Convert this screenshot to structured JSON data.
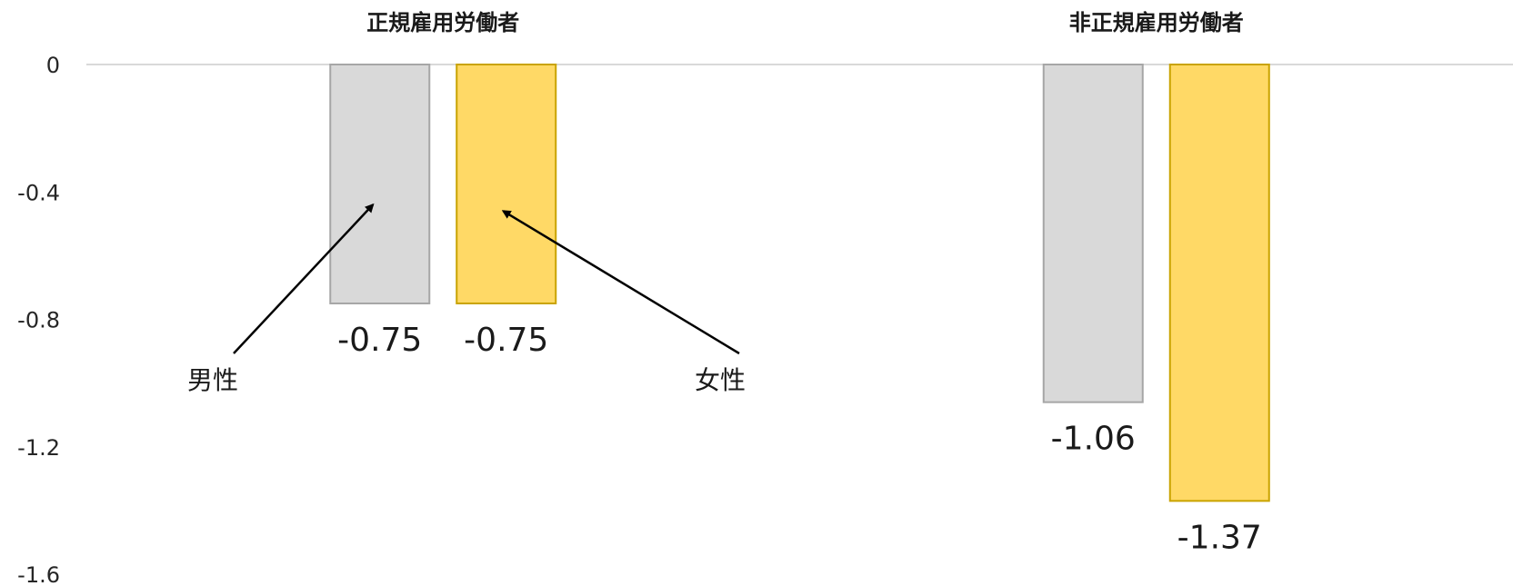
{
  "chart_data": {
    "type": "bar",
    "categories": [
      "正規雇用労働者",
      "非正規雇用労働者"
    ],
    "series": [
      {
        "name": "男性",
        "values": [
          -0.75,
          -1.06
        ],
        "color": "#d9d9d9",
        "stroke": "#a6a6a6"
      },
      {
        "name": "女性",
        "values": [
          -0.75,
          -1.37
        ],
        "color": "#ffd966",
        "stroke": "#c9a300"
      }
    ],
    "data_labels": [
      [
        "-0.75",
        "-1.06"
      ],
      [
        "-0.75",
        "-1.37"
      ]
    ],
    "ylim": [
      -1.6,
      0
    ],
    "yticks": [
      0,
      -0.4,
      -0.8,
      -1.2,
      -1.6
    ],
    "ytick_labels": [
      "0",
      "-0.4",
      "-0.8",
      "-1.2",
      "-1.6"
    ],
    "grid": false,
    "legend": "arrow annotations",
    "annotations": [
      {
        "text": "男性",
        "series": 0,
        "category": 0
      },
      {
        "text": "女性",
        "series": 1,
        "category": 0
      }
    ]
  }
}
